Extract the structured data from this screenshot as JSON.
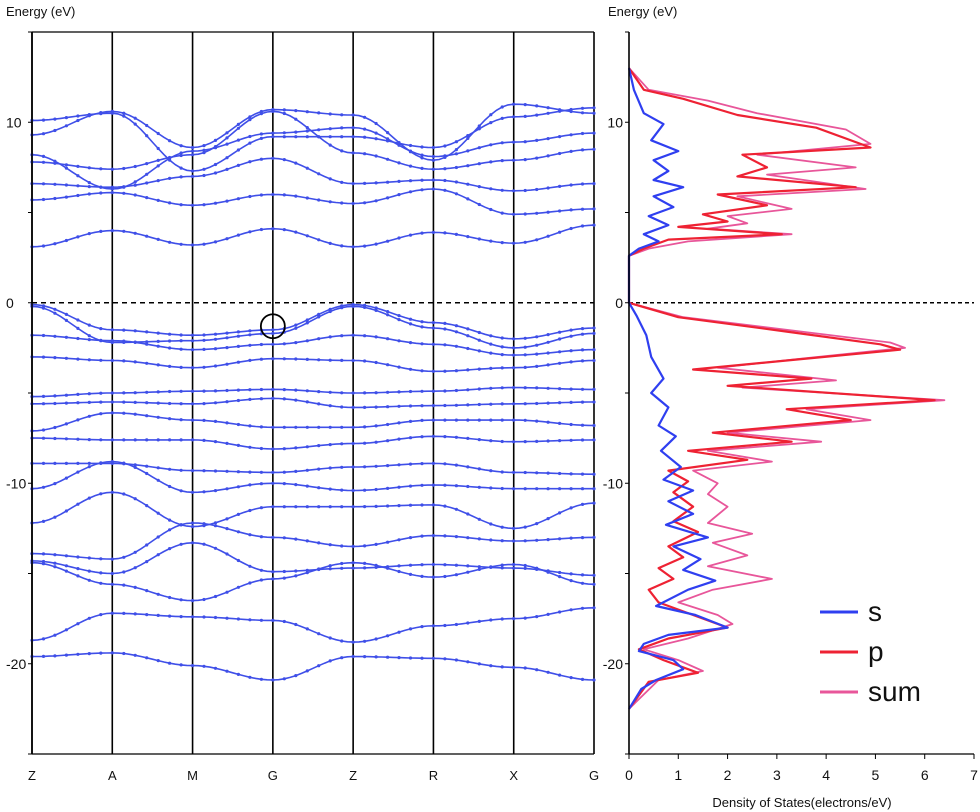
{
  "colors": {
    "band": "#3f4fe8",
    "s": "#2f3ff0",
    "p": "#ee2233",
    "sum": "#e8569a",
    "fermi": "#000000"
  },
  "chart_data": [
    {
      "type": "line",
      "title": "Energy (eV)",
      "ylabel": "Energy (eV)",
      "xlabel": "",
      "ylim": [
        -25,
        15
      ],
      "yticks": [
        10,
        0,
        -10,
        -20
      ],
      "ytick_labels": [
        "10",
        "0",
        "-10",
        "-20"
      ],
      "kpoints": [
        "Z",
        "A",
        "M",
        "G",
        "Z",
        "R",
        "X",
        "G"
      ],
      "x": [
        0,
        1,
        2,
        3,
        4,
        5,
        6,
        7
      ],
      "fermi_level": 0,
      "marker": {
        "x": 3,
        "y": -1.3,
        "symbol": "circle"
      },
      "series": [
        {
          "values": [
            3.1,
            4.0,
            3.2,
            4.1,
            3.1,
            3.9,
            3.3,
            4.3
          ]
        },
        {
          "values": [
            5.7,
            6.1,
            5.4,
            6.0,
            5.5,
            6.3,
            4.9,
            5.2
          ]
        },
        {
          "values": [
            6.6,
            6.4,
            7.0,
            8.0,
            6.6,
            6.8,
            6.2,
            6.6
          ]
        },
        {
          "values": [
            7.8,
            7.4,
            8.2,
            10.6,
            8.3,
            7.4,
            7.9,
            8.5
          ]
        },
        {
          "values": [
            8.2,
            6.3,
            8.4,
            9.4,
            9.7,
            8.1,
            8.9,
            9.4
          ]
        },
        {
          "values": [
            9.3,
            10.6,
            8.6,
            10.7,
            10.4,
            7.9,
            11.0,
            10.5
          ]
        },
        {
          "values": [
            10.1,
            10.5,
            7.3,
            9.2,
            9.2,
            8.6,
            10.3,
            10.8
          ]
        },
        {
          "values": [
            -0.1,
            -1.5,
            -1.8,
            -1.5,
            -0.1,
            -1.1,
            -2.0,
            -1.4
          ]
        },
        {
          "values": [
            -0.2,
            -2.2,
            -2.1,
            -1.7,
            -0.2,
            -1.4,
            -2.5,
            -1.7
          ]
        },
        {
          "values": [
            -1.8,
            -2.1,
            -2.6,
            -2.3,
            -1.8,
            -2.3,
            -2.9,
            -2.6
          ]
        },
        {
          "values": [
            -3.0,
            -3.2,
            -3.6,
            -3.1,
            -3.2,
            -3.8,
            -3.6,
            -3.2
          ]
        },
        {
          "values": [
            -5.2,
            -5.0,
            -4.9,
            -4.8,
            -5.0,
            -4.9,
            -4.7,
            -4.8
          ]
        },
        {
          "values": [
            -5.6,
            -5.5,
            -5.6,
            -5.3,
            -5.8,
            -5.7,
            -5.6,
            -5.5
          ]
        },
        {
          "values": [
            -7.1,
            -6.1,
            -6.5,
            -6.9,
            -6.9,
            -6.5,
            -6.5,
            -6.8
          ]
        },
        {
          "values": [
            -7.5,
            -7.6,
            -7.6,
            -8.1,
            -7.8,
            -7.4,
            -7.7,
            -7.6
          ]
        },
        {
          "values": [
            -8.9,
            -8.9,
            -9.3,
            -9.4,
            -9.1,
            -8.9,
            -9.4,
            -9.5
          ]
        },
        {
          "values": [
            -10.3,
            -8.8,
            -10.5,
            -10.0,
            -10.4,
            -10.1,
            -10.3,
            -10.3
          ]
        },
        {
          "values": [
            -12.2,
            -10.5,
            -12.4,
            -11.3,
            -11.3,
            -11.2,
            -12.5,
            -11.1
          ]
        },
        {
          "values": [
            -13.9,
            -14.2,
            -12.2,
            -13.0,
            -13.5,
            -12.9,
            -13.2,
            -13.0
          ]
        },
        {
          "values": [
            -14.3,
            -15.0,
            -13.3,
            -14.9,
            -14.7,
            -14.5,
            -14.7,
            -15.1
          ]
        },
        {
          "values": [
            -14.4,
            -15.6,
            -16.5,
            -15.3,
            -14.4,
            -15.2,
            -14.5,
            -15.6
          ]
        },
        {
          "values": [
            -18.7,
            -17.2,
            -17.4,
            -17.6,
            -18.8,
            -17.9,
            -17.5,
            -16.9
          ]
        },
        {
          "values": [
            -19.6,
            -19.4,
            -20.1,
            -20.9,
            -19.6,
            -19.7,
            -20.2,
            -20.9
          ]
        }
      ]
    },
    {
      "type": "line",
      "title": "Energy (eV)",
      "xlabel": "Density of States(electrons/eV)",
      "ylabel": "Energy (eV)",
      "xlim": [
        0,
        7
      ],
      "xticks": [
        0,
        1,
        2,
        3,
        4,
        5,
        6,
        7
      ],
      "xtick_labels": [
        "0",
        "1",
        "2",
        "3",
        "4",
        "5",
        "6",
        "7"
      ],
      "ylim": [
        -25,
        15
      ],
      "yticks": [
        10,
        0,
        -10,
        -20
      ],
      "ytick_labels": [
        "10",
        "0",
        "-10",
        "-20"
      ],
      "fermi_level": 0,
      "legend": {
        "placement": "bottom-right",
        "entries": [
          "s",
          "p",
          "sum"
        ]
      },
      "series": [
        {
          "name": "s",
          "color": "#2f3ff0",
          "points": [
            [
              0,
              13
            ],
            [
              0.1,
              11.8
            ],
            [
              0.3,
              10.5
            ],
            [
              0.7,
              9.9
            ],
            [
              0.45,
              9.0
            ],
            [
              1.0,
              8.4
            ],
            [
              0.5,
              7.9
            ],
            [
              0.8,
              7.3
            ],
            [
              0.5,
              6.8
            ],
            [
              1.1,
              6.4
            ],
            [
              0.5,
              5.9
            ],
            [
              0.9,
              5.3
            ],
            [
              0.4,
              4.8
            ],
            [
              0.8,
              4.3
            ],
            [
              0.3,
              3.8
            ],
            [
              0.6,
              3.4
            ],
            [
              0.2,
              3.0
            ],
            [
              0,
              2.6
            ],
            [
              0,
              0
            ],
            [
              0.15,
              -0.7
            ],
            [
              0.35,
              -1.8
            ],
            [
              0.45,
              -3.0
            ],
            [
              0.7,
              -4.2
            ],
            [
              0.45,
              -5.0
            ],
            [
              0.8,
              -5.8
            ],
            [
              0.6,
              -6.8
            ],
            [
              0.95,
              -7.4
            ],
            [
              0.65,
              -8.2
            ],
            [
              1.05,
              -9.1
            ],
            [
              0.7,
              -9.8
            ],
            [
              1.3,
              -10.4
            ],
            [
              0.8,
              -11.0
            ],
            [
              1.3,
              -11.7
            ],
            [
              0.75,
              -12.3
            ],
            [
              1.6,
              -13.0
            ],
            [
              0.9,
              -13.5
            ],
            [
              1.45,
              -14.2
            ],
            [
              1.1,
              -14.8
            ],
            [
              1.75,
              -15.4
            ],
            [
              1.2,
              -15.9
            ],
            [
              0.55,
              -16.8
            ],
            [
              1.35,
              -17.3
            ],
            [
              2.0,
              -18.0
            ],
            [
              0.8,
              -18.4
            ],
            [
              0.3,
              -18.9
            ],
            [
              0.2,
              -19.3
            ],
            [
              0.9,
              -19.8
            ],
            [
              1.1,
              -20.3
            ],
            [
              0.55,
              -20.9
            ],
            [
              0.25,
              -21.4
            ],
            [
              0,
              -22.5
            ]
          ]
        },
        {
          "name": "p",
          "color": "#ee2233",
          "points": [
            [
              0,
              13
            ],
            [
              0.3,
              11.8
            ],
            [
              1.1,
              11.3
            ],
            [
              2.2,
              10.4
            ],
            [
              3.8,
              9.7
            ],
            [
              4.9,
              8.6
            ],
            [
              2.3,
              8.2
            ],
            [
              2.8,
              7.5
            ],
            [
              2.2,
              7.0
            ],
            [
              4.6,
              6.4
            ],
            [
              1.8,
              6.0
            ],
            [
              2.8,
              5.4
            ],
            [
              1.5,
              4.9
            ],
            [
              2.0,
              4.5
            ],
            [
              1.0,
              4.2
            ],
            [
              3.1,
              3.8
            ],
            [
              0.8,
              3.5
            ],
            [
              0.3,
              3.0
            ],
            [
              0,
              2.6
            ],
            [
              0,
              0
            ],
            [
              1.0,
              -0.8
            ],
            [
              3.2,
              -1.6
            ],
            [
              5.1,
              -2.3
            ],
            [
              5.5,
              -2.6
            ],
            [
              3.2,
              -3.2
            ],
            [
              1.3,
              -3.7
            ],
            [
              3.7,
              -4.2
            ],
            [
              2.0,
              -4.6
            ],
            [
              6.2,
              -5.4
            ],
            [
              3.2,
              -5.9
            ],
            [
              4.5,
              -6.5
            ],
            [
              1.7,
              -7.2
            ],
            [
              3.3,
              -7.7
            ],
            [
              1.2,
              -8.2
            ],
            [
              2.4,
              -8.7
            ],
            [
              0.8,
              -9.3
            ],
            [
              1.2,
              -9.9
            ],
            [
              0.9,
              -10.5
            ],
            [
              1.3,
              -11.3
            ],
            [
              0.9,
              -12.1
            ],
            [
              1.4,
              -12.7
            ],
            [
              0.8,
              -13.5
            ],
            [
              1.1,
              -14.1
            ],
            [
              0.6,
              -14.7
            ],
            [
              0.9,
              -15.3
            ],
            [
              0.4,
              -15.9
            ],
            [
              0.6,
              -16.6
            ],
            [
              1.3,
              -17.3
            ],
            [
              2.0,
              -18.0
            ],
            [
              0.8,
              -18.6
            ],
            [
              0.2,
              -19.2
            ],
            [
              0.7,
              -19.8
            ],
            [
              1.4,
              -20.5
            ],
            [
              0.4,
              -21.0
            ],
            [
              0,
              -22.5
            ]
          ]
        },
        {
          "name": "sum",
          "color": "#e8569a",
          "points": [
            [
              0,
              13
            ],
            [
              0.4,
              11.8
            ],
            [
              1.6,
              11.2
            ],
            [
              2.6,
              10.5
            ],
            [
              4.4,
              9.6
            ],
            [
              4.9,
              8.8
            ],
            [
              2.6,
              8.2
            ],
            [
              4.6,
              7.5
            ],
            [
              2.8,
              7.1
            ],
            [
              4.8,
              6.3
            ],
            [
              2.2,
              5.9
            ],
            [
              3.3,
              5.2
            ],
            [
              2.0,
              4.8
            ],
            [
              2.4,
              4.4
            ],
            [
              1.6,
              4.1
            ],
            [
              3.3,
              3.8
            ],
            [
              1.2,
              3.4
            ],
            [
              0.4,
              3.0
            ],
            [
              0,
              2.6
            ],
            [
              0,
              0
            ],
            [
              1.1,
              -0.8
            ],
            [
              3.5,
              -1.6
            ],
            [
              5.3,
              -2.2
            ],
            [
              5.6,
              -2.5
            ],
            [
              3.5,
              -3.1
            ],
            [
              1.8,
              -3.6
            ],
            [
              4.2,
              -4.3
            ],
            [
              2.3,
              -4.7
            ],
            [
              6.4,
              -5.4
            ],
            [
              3.6,
              -5.9
            ],
            [
              4.9,
              -6.5
            ],
            [
              2.0,
              -7.2
            ],
            [
              3.9,
              -7.7
            ],
            [
              1.6,
              -8.2
            ],
            [
              2.9,
              -8.8
            ],
            [
              1.3,
              -9.3
            ],
            [
              1.8,
              -10.0
            ],
            [
              1.6,
              -10.6
            ],
            [
              2.0,
              -11.3
            ],
            [
              1.6,
              -12.2
            ],
            [
              2.5,
              -12.8
            ],
            [
              1.7,
              -13.3
            ],
            [
              2.4,
              -14.0
            ],
            [
              1.6,
              -14.6
            ],
            [
              2.9,
              -15.3
            ],
            [
              1.7,
              -15.9
            ],
            [
              1.0,
              -16.6
            ],
            [
              1.8,
              -17.3
            ],
            [
              2.1,
              -17.8
            ],
            [
              1.2,
              -18.6
            ],
            [
              0.3,
              -19.2
            ],
            [
              1.0,
              -19.8
            ],
            [
              1.5,
              -20.4
            ],
            [
              0.6,
              -20.9
            ],
            [
              0,
              -22.5
            ]
          ]
        }
      ]
    }
  ]
}
